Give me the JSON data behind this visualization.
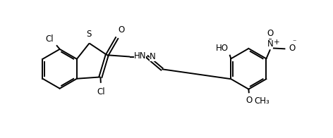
{
  "bg_color": "#ffffff",
  "line_color": "#000000",
  "line_width": 1.4,
  "font_size": 8.5,
  "fig_width": 4.72,
  "fig_height": 1.96,
  "dpi": 100,
  "xlim": [
    0,
    10
  ],
  "ylim": [
    0,
    4.15
  ]
}
